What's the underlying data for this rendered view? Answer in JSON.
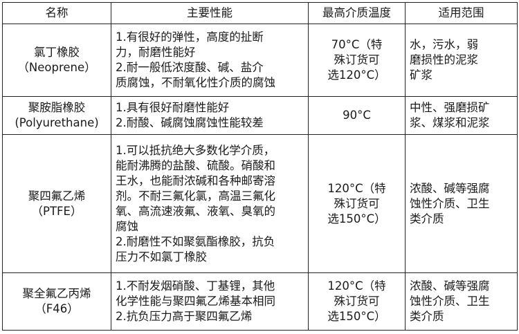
{
  "headers": [
    "名称",
    "主要性能",
    "最高介质温度",
    "适用范围"
  ],
  "rows": [
    {
      "name": [
        "氯丁橡胶",
        "（Neoprene）"
      ],
      "performance": [
        "1.有很好的弹性，高度的扯断",
        "力，耐磨性能好",
        "2.耐一般低浓度酸、碱、盐介",
        "质腐蚀，不耐氧化性介质的腐蚀"
      ],
      "temperature": [
        "70°C（特",
        "殊订货可",
        "选120°C）"
      ],
      "scope": [
        "水，污水，弱",
        "磨损性的泥浆",
        "矿浆"
      ]
    },
    {
      "name": [
        "聚胺脂橡胶",
        "(Polyurethane)"
      ],
      "performance": [
        "1.具有很好耐磨性能好",
        "2.耐酸、碱腐蚀腐蚀性能较差"
      ],
      "temperature": [
        "90°C"
      ],
      "scope": [
        "中性、强磨损矿",
        "浆、煤浆和泥浆"
      ]
    },
    {
      "name": [
        "聚四氟乙烯",
        "（PTFE）"
      ],
      "performance": [
        "1.可以抵抗绝大多数化学介质，",
        "能耐沸腾的盐酸、硫酸。硝酸和",
        "王水，也能耐浓碱和各种邮寄溶",
        "剂。不耐三氟化氯，高温三氟化",
        "氧、高流速液氟、液氧、臭氧的",
        "腐蚀",
        "2.耐磨性不如聚氨酯橡胶，抗负",
        "压力不如氯丁橡胶"
      ],
      "temperature": [
        "120°C（特",
        "殊订货可",
        "选150°C）"
      ],
      "scope": [
        "浓酸、碱等强腐",
        "蚀性介质、卫生",
        "类介质"
      ]
    },
    {
      "name": [
        "聚全氟乙丙烯",
        "（F46）"
      ],
      "performance": [
        "1.不耐发烟硝酸、丁基锂，其他",
        "化学性能与聚四氟乙烯基本相同",
        "2.抗负压力高于聚四氟乙烯"
      ],
      "temperature": [
        "120°C（特",
        "殊订货可",
        "选150°C）"
      ],
      "scope": [
        "浓酸、碱等强腐",
        "蚀性介质、卫生",
        "类介质"
      ]
    }
  ]
}
